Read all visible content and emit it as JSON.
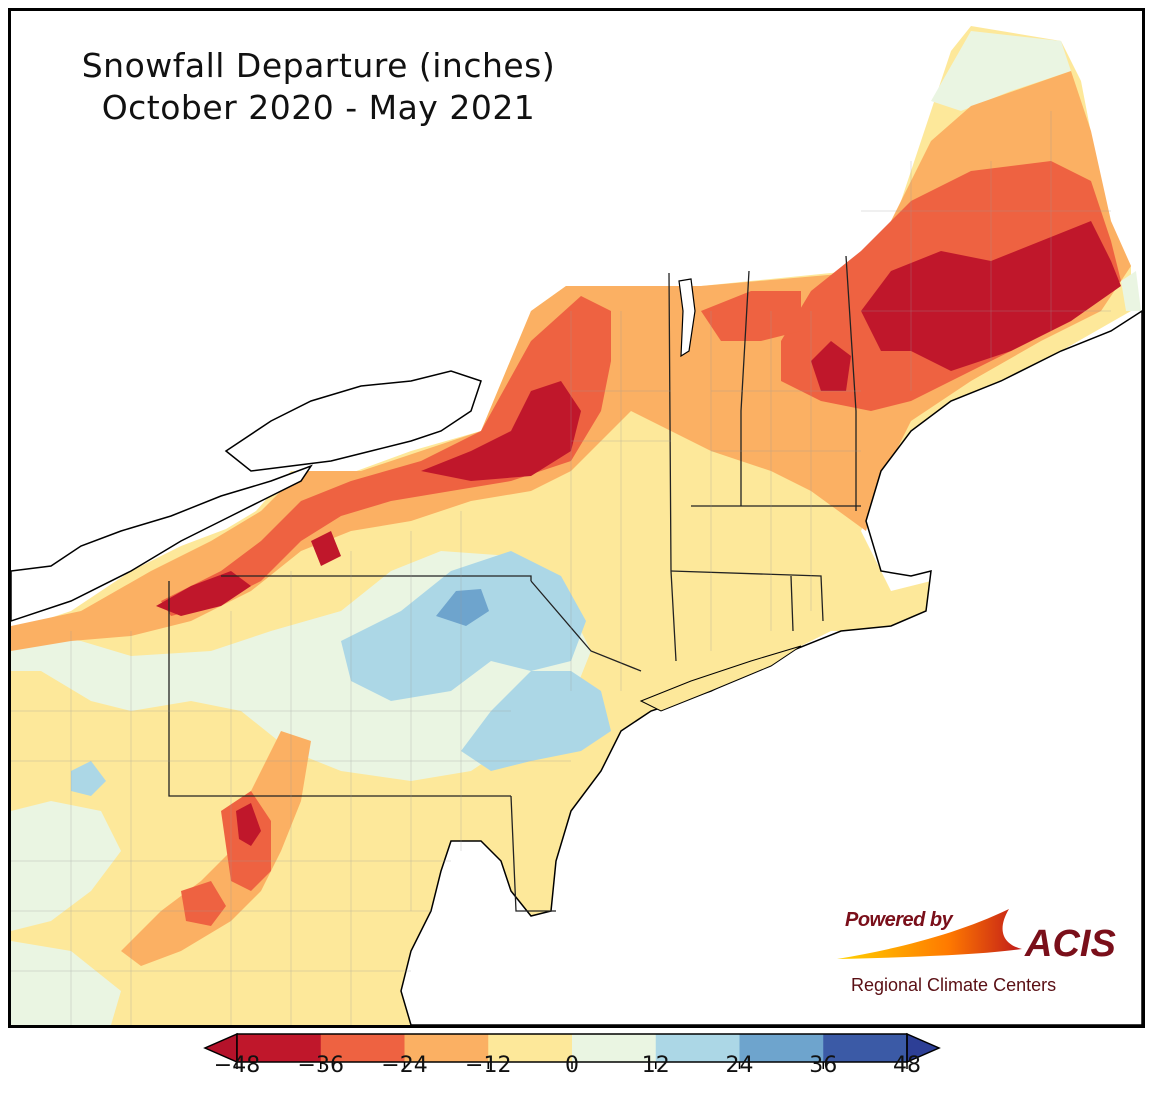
{
  "title": {
    "line1": "Snowfall Departure (inches)",
    "line2": "October 2020 - May 2021"
  },
  "logo": {
    "powered_by": "Powered by",
    "name": "ACIS",
    "subtitle": "Regional Climate Centers"
  },
  "colorbar": {
    "ticks": [
      "−48",
      "−36",
      "−24",
      "−12",
      "0",
      "12",
      "24",
      "36",
      "48"
    ],
    "colors": [
      "#c0172b",
      "#ee6241",
      "#fbb063",
      "#fde89a",
      "#eaf5e2",
      "#acd7e6",
      "#6ea4cd",
      "#3b5aa6"
    ],
    "extend_low_color": "#b5122a",
    "extend_high_color": "#2d3f96"
  },
  "palette": {
    "ocean": "#ffffff",
    "land_default": "#fde89a"
  }
}
